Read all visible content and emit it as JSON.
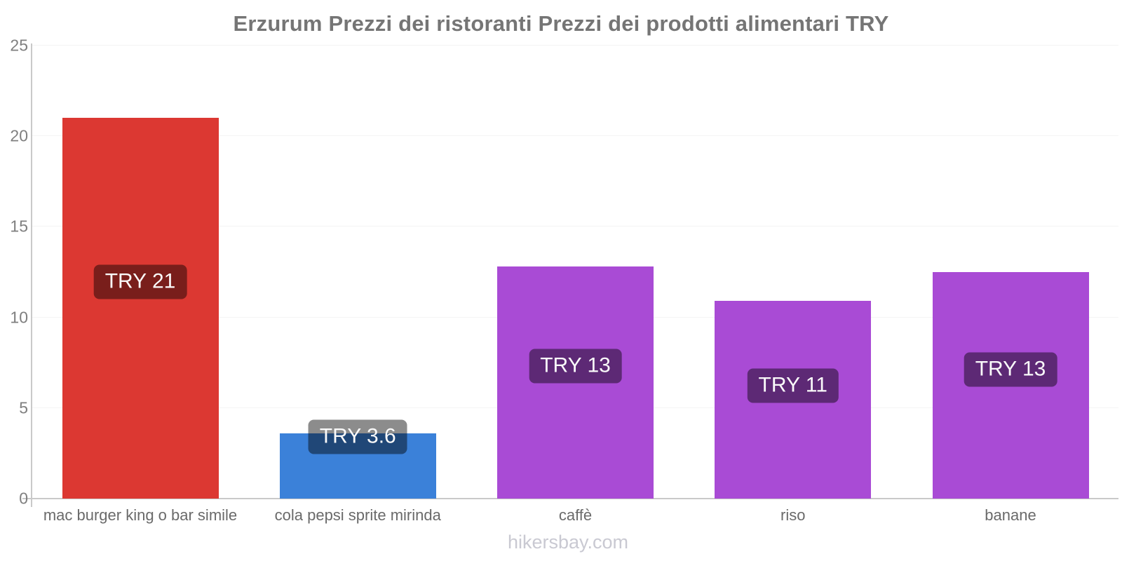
{
  "title": "Erzurum Prezzi dei ristoranti Prezzi dei prodotti alimentari TRY",
  "footer": {
    "text": "hikersbay.com"
  },
  "chart_data": {
    "type": "bar",
    "title": "Erzurum Prezzi dei ristoranti Prezzi dei prodotti alimentari TRY",
    "xlabel": "",
    "ylabel": "",
    "currency": "TRY",
    "categories": [
      "mac burger king o bar simile",
      "cola pepsi sprite mirinda",
      "caffè",
      "riso",
      "banane"
    ],
    "values": [
      21,
      3.6,
      12.8,
      10.9,
      12.5
    ],
    "bar_labels": [
      "TRY 21",
      "TRY 3.6",
      "TRY 13",
      "TRY 11",
      "TRY 13"
    ],
    "bar_colors": [
      "#dc3832",
      "#3b81d9",
      "#a94bd5",
      "#a94bd5",
      "#a94bd5"
    ],
    "ylim": [
      0,
      25
    ],
    "yticks": [
      0,
      5,
      10,
      15,
      20,
      25
    ],
    "grid": "faint horizontal gridlines",
    "legend_position": "none",
    "value_label_style": "dark translucent rounded box inside bar, white text",
    "footer_text": "hikersbay.com"
  },
  "colors": {
    "title_text": "#757575",
    "axis_line": "#c9c9c9",
    "gridline": "#f4f4f4",
    "y_tick_text": "#7f7f7f",
    "x_label_text": "#6a6a6a",
    "footer_text": "#c9c9d2",
    "bar_red": "#dc3832",
    "bar_blue": "#3b81d9",
    "bar_purple": "#a94bd5",
    "label_overlay": "rgba(0,0,0,0.45)"
  }
}
